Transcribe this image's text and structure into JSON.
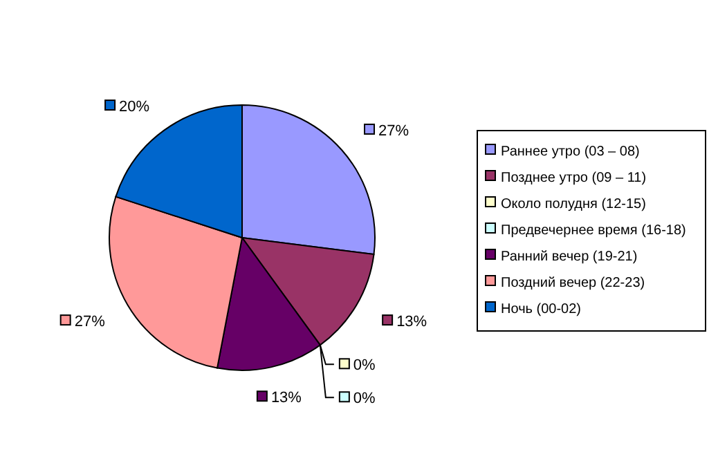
{
  "chart_data": {
    "type": "pie",
    "categories": [
      "Раннее утро (03 – 08)",
      "Позднее утро (09 – 11)",
      "Около полудня (12-15)",
      "Предвечернее время (16-18)",
      "Ранний вечер (19-21)",
      "Поздний вечер (22-23)",
      "Ночь (00-02)"
    ],
    "values": [
      27,
      13,
      0,
      0,
      13,
      27,
      20
    ],
    "value_labels": [
      "27%",
      "13%",
      "0%",
      "0%",
      "13%",
      "27%",
      "20%"
    ],
    "colors": [
      "#9999ff",
      "#993366",
      "#ffffcc",
      "#ccffff",
      "#660066",
      "#ff9999",
      "#0066cc"
    ],
    "legend": "right"
  }
}
